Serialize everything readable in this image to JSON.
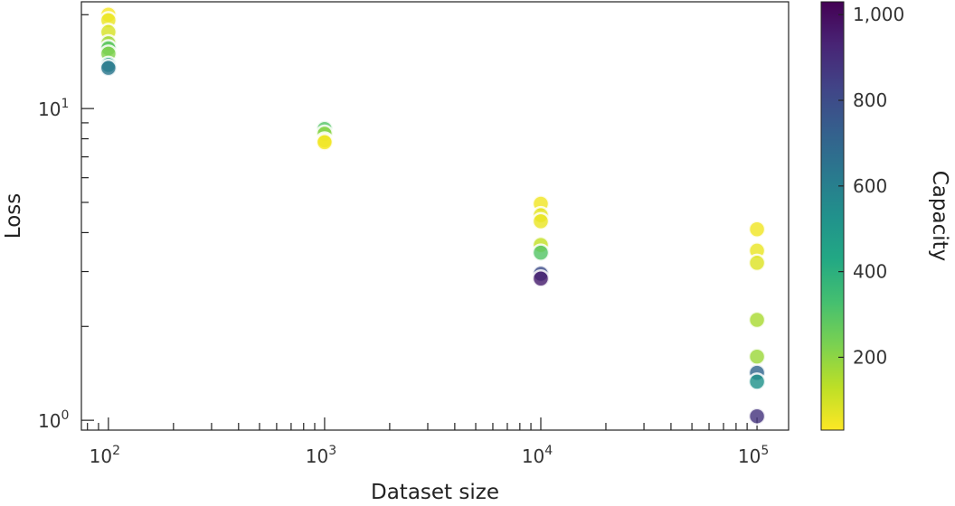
{
  "chart_data": {
    "type": "scatter",
    "xlabel": "Dataset size",
    "ylabel": "Loss",
    "xscale": "log",
    "yscale": "log",
    "xlim": [
      75,
      140000
    ],
    "ylim": [
      0.93,
      22
    ],
    "x_ticks": [
      {
        "value": 100,
        "base": "10",
        "exp": "2"
      },
      {
        "value": 1000,
        "base": "10",
        "exp": "3"
      },
      {
        "value": 10000,
        "base": "10",
        "exp": "4"
      },
      {
        "value": 100000,
        "base": "10",
        "exp": "5"
      }
    ],
    "y_ticks": [
      {
        "value": 1,
        "base": "10",
        "exp": "0"
      },
      {
        "value": 10,
        "base": "10",
        "exp": "1"
      }
    ],
    "grid": false,
    "colorbar": {
      "label": "Capacity",
      "colormap": "viridis",
      "range": [
        30,
        1030
      ],
      "ticks": [
        {
          "value": 200,
          "label": "200"
        },
        {
          "value": 400,
          "label": "400"
        },
        {
          "value": 600,
          "label": "600"
        },
        {
          "value": 800,
          "label": "800"
        },
        {
          "value": 1000,
          "label": "1,000"
        }
      ]
    },
    "points": [
      {
        "x": 100,
        "y": 20.0,
        "capacity": 40
      },
      {
        "x": 100,
        "y": 19.2,
        "capacity": 60
      },
      {
        "x": 100,
        "y": 17.6,
        "capacity": 90
      },
      {
        "x": 100,
        "y": 16.2,
        "capacity": 180
      },
      {
        "x": 100,
        "y": 15.6,
        "capacity": 300
      },
      {
        "x": 100,
        "y": 15.0,
        "capacity": 220
      },
      {
        "x": 100,
        "y": 13.8,
        "capacity": 500
      },
      {
        "x": 100,
        "y": 13.5,
        "capacity": 640
      },
      {
        "x": 1000,
        "y": 8.6,
        "capacity": 300
      },
      {
        "x": 1000,
        "y": 8.3,
        "capacity": 200
      },
      {
        "x": 1000,
        "y": 7.9,
        "capacity": 100
      },
      {
        "x": 1000,
        "y": 7.8,
        "capacity": 40
      },
      {
        "x": 10000,
        "y": 4.95,
        "capacity": 50
      },
      {
        "x": 10000,
        "y": 4.55,
        "capacity": 70
      },
      {
        "x": 10000,
        "y": 4.35,
        "capacity": 60
      },
      {
        "x": 10000,
        "y": 3.65,
        "capacity": 120
      },
      {
        "x": 10000,
        "y": 3.45,
        "capacity": 300
      },
      {
        "x": 10000,
        "y": 2.95,
        "capacity": 800
      },
      {
        "x": 10000,
        "y": 2.85,
        "capacity": 950
      },
      {
        "x": 100000,
        "y": 4.1,
        "capacity": 50
      },
      {
        "x": 100000,
        "y": 3.5,
        "capacity": 60
      },
      {
        "x": 100000,
        "y": 3.2,
        "capacity": 80
      },
      {
        "x": 100000,
        "y": 2.1,
        "capacity": 160
      },
      {
        "x": 100000,
        "y": 1.6,
        "capacity": 180
      },
      {
        "x": 100000,
        "y": 1.42,
        "capacity": 700
      },
      {
        "x": 100000,
        "y": 1.33,
        "capacity": 520
      },
      {
        "x": 100000,
        "y": 1.03,
        "capacity": 880
      }
    ]
  }
}
